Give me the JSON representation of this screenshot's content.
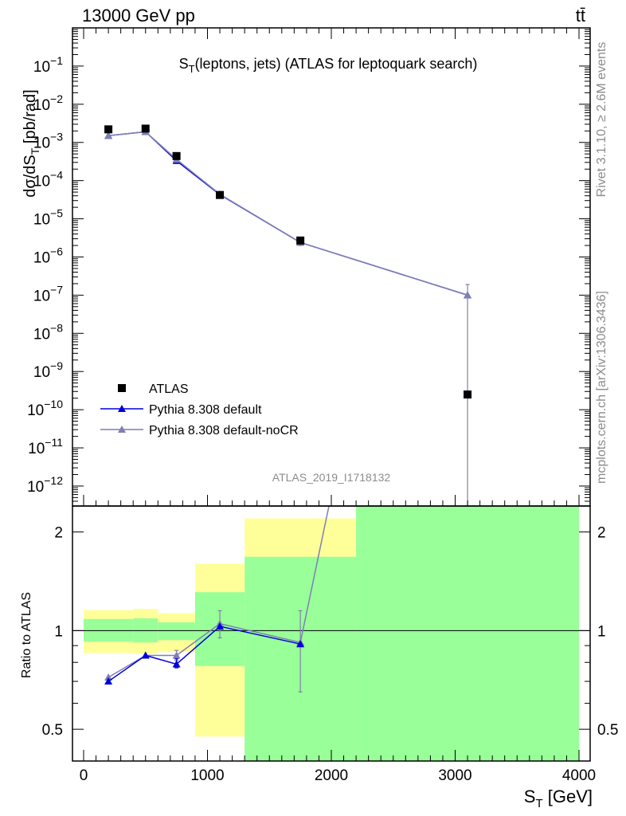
{
  "header": {
    "energy_label": "13000 GeV pp",
    "process_label": "tt̄"
  },
  "side_text": {
    "rivet": "Rivet 3.1.10, ≥ 2.6M events",
    "mcplots": "mcplots.cern.ch [arXiv:1306.3436]"
  },
  "chart_data": [
    {
      "type": "scatter",
      "title": "S_T(leptons, jets) (ATLAS for leptoquark search)",
      "title_main": "S",
      "title_sub": "T",
      "title_rest": "(leptons, jets) (ATLAS for leptoquark search)",
      "ylabel": "dσ/dS_T [pb/rad]",
      "ylabel_pre": "dσ/dS",
      "ylabel_sub": "T",
      "ylabel_post": " [pb/rad]",
      "yscale": "log",
      "ylim": [
        3e-13,
        1
      ],
      "xlim": [
        -90,
        4090
      ],
      "y_ticks": [
        {
          "value": 1e-12,
          "mant": "10",
          "exp": "−12"
        },
        {
          "value": 1e-11,
          "mant": "10",
          "exp": "−11"
        },
        {
          "value": 1e-10,
          "mant": "10",
          "exp": "−10"
        },
        {
          "value": 1e-09,
          "mant": "10",
          "exp": "−9"
        },
        {
          "value": 1e-08,
          "mant": "10",
          "exp": "−8"
        },
        {
          "value": 1e-07,
          "mant": "10",
          "exp": "−7"
        },
        {
          "value": 1e-06,
          "mant": "10",
          "exp": "−6"
        },
        {
          "value": 1e-05,
          "mant": "10",
          "exp": "−5"
        },
        {
          "value": 0.0001,
          "mant": "10",
          "exp": "−4"
        },
        {
          "value": 0.001,
          "mant": "10",
          "exp": "−3"
        },
        {
          "value": 0.01,
          "mant": "10",
          "exp": "−2"
        },
        {
          "value": 0.1,
          "mant": "10",
          "exp": "−1"
        }
      ],
      "watermark": "ATLAS_2019_I1718132",
      "legend_position": "bottom-left",
      "series": [
        {
          "name": "ATLAS",
          "style": "data",
          "color": "#000000",
          "x": [
            200,
            500,
            750,
            1100,
            1750,
            3100
          ],
          "y": [
            0.0022,
            0.0023,
            0.00044,
            4.2e-05,
            2.7e-06,
            2.5e-10
          ]
        },
        {
          "name": "Pythia 8.308 default",
          "style": "mc",
          "color": "#0000dd",
          "x": [
            200,
            500,
            750,
            1100,
            1750,
            3100
          ],
          "y": [
            0.0015,
            0.0019,
            0.00033,
            4.3e-05,
            2.4e-06,
            1e-07
          ]
        },
        {
          "name": "Pythia 8.308 default-noCR",
          "style": "mc",
          "color": "#7f7fb2",
          "x": [
            200,
            500,
            750,
            1100,
            1750,
            3100
          ],
          "y": [
            0.0015,
            0.0019,
            0.00036,
            4.4e-05,
            2.4e-06,
            1e-07
          ],
          "yerr_up": [
            null,
            null,
            null,
            null,
            2.9e-06,
            1.9e-07
          ],
          "yerr_down": [
            null,
            null,
            null,
            null,
            1.9e-06,
            1e-13
          ]
        }
      ]
    },
    {
      "type": "scatter",
      "title": "",
      "xlabel": "S_T [GeV]",
      "xlabel_main": "S",
      "xlabel_sub": "T",
      "xlabel_rest": " [GeV]",
      "ylabel": "Ratio to ATLAS",
      "yscale": "log",
      "ylim": [
        0.4,
        2.4
      ],
      "xlim": [
        -90,
        4090
      ],
      "x_ticks": [
        0,
        1000,
        2000,
        3000,
        4000
      ],
      "x_tick_labels": [
        "0",
        "1000",
        "2000",
        "3000",
        "4000"
      ],
      "y_ticks": [
        0.5,
        1,
        2
      ],
      "y_tick_labels": [
        "0.5",
        "1",
        "2"
      ],
      "reference_line": 1,
      "bands": [
        {
          "x0": 0,
          "x1": 400,
          "inner": [
            0.925,
            1.085
          ],
          "outer": [
            0.855,
            1.155
          ]
        },
        {
          "x0": 400,
          "x1": 600,
          "inner": [
            0.92,
            1.09
          ],
          "outer": [
            0.85,
            1.165
          ]
        },
        {
          "x0": 600,
          "x1": 900,
          "inner": [
            0.935,
            1.06
          ],
          "outer": [
            0.86,
            1.13
          ]
        },
        {
          "x0": 900,
          "x1": 1300,
          "inner": [
            0.78,
            1.31
          ],
          "outer": [
            0.475,
            1.6
          ]
        },
        {
          "x0": 1300,
          "x1": 2200,
          "inner": [
            0.35,
            1.68
          ],
          "outer": [
            0.35,
            2.2
          ]
        },
        {
          "x0": 2200,
          "x1": 4000,
          "inner": [
            0.35,
            2.6
          ],
          "outer": [
            0.35,
            2.6
          ]
        }
      ],
      "series": [
        {
          "name": "Pythia 8.308 default",
          "color": "#0000dd",
          "x": [
            200,
            500,
            750,
            1100,
            1750
          ],
          "y": [
            0.7,
            0.84,
            0.79,
            1.03,
            0.91
          ],
          "yerr_up": [
            null,
            null,
            0.82,
            null,
            null
          ],
          "yerr_down": [
            null,
            null,
            0.77,
            null,
            null
          ]
        },
        {
          "name": "Pythia 8.308 default-noCR",
          "color": "#7f7fb2",
          "x": [
            200,
            500,
            750,
            1100,
            1750,
            2000
          ],
          "y": [
            0.72,
            0.84,
            0.84,
            1.05,
            0.92,
            2.6
          ],
          "yerr_up": [
            null,
            null,
            0.87,
            1.15,
            1.15,
            null
          ],
          "yerr_down": [
            null,
            null,
            0.81,
            0.95,
            0.65,
            null
          ]
        }
      ]
    }
  ]
}
